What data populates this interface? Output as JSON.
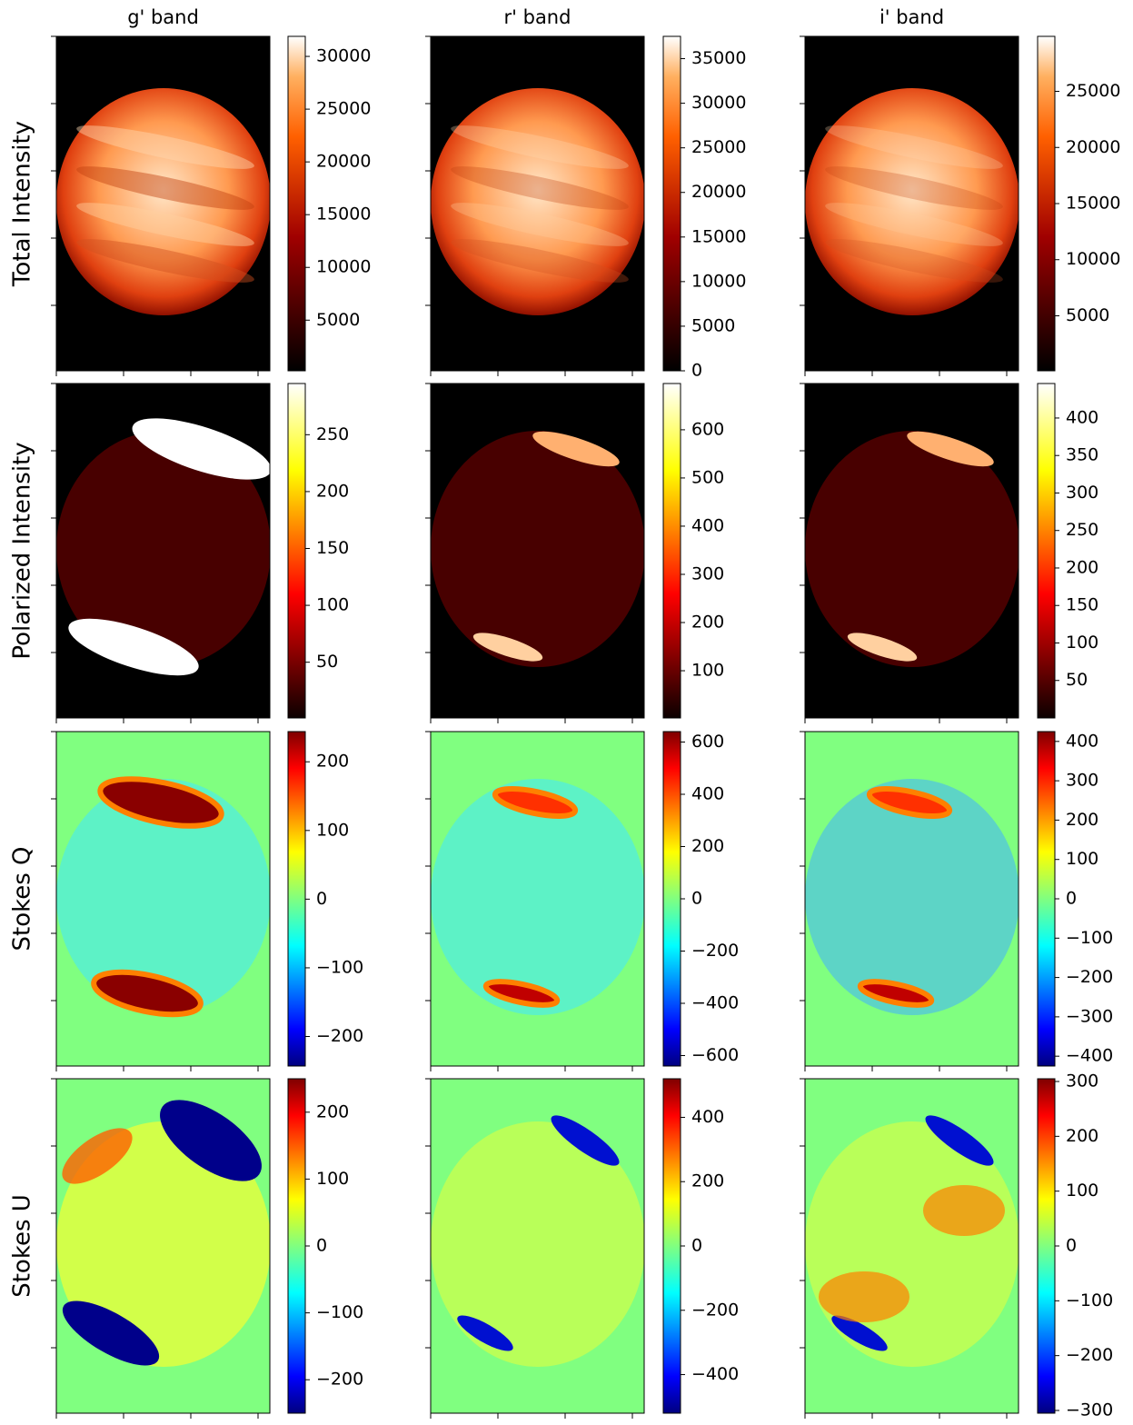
{
  "chart_data": [
    {
      "type": "image",
      "title": "g' band",
      "ylabel": "Total Intensity",
      "colormap": "hot",
      "clim": [
        200,
        31900
      ],
      "cticks": [
        5000,
        10000,
        15000,
        20000,
        25000,
        30000
      ]
    },
    {
      "type": "image",
      "title": "r' band",
      "colormap": "hot",
      "clim": [
        0,
        37500
      ],
      "cticks": [
        0,
        5000,
        10000,
        15000,
        20000,
        25000,
        30000,
        35000
      ]
    },
    {
      "type": "image",
      "title": "i' band",
      "colormap": "hot",
      "clim": [
        100,
        29900
      ],
      "cticks": [
        5000,
        10000,
        15000,
        20000,
        25000
      ]
    },
    {
      "type": "image",
      "ylabel": "Polarized Intensity",
      "colormap": "hot",
      "clim": [
        1,
        295
      ],
      "cticks": [
        50,
        100,
        150,
        200,
        250
      ]
    },
    {
      "type": "image",
      "colormap": "hot",
      "clim": [
        2,
        696
      ],
      "cticks": [
        100,
        200,
        300,
        400,
        500,
        600
      ]
    },
    {
      "type": "image",
      "colormap": "hot",
      "clim": [
        0,
        446
      ],
      "cticks": [
        50,
        100,
        150,
        200,
        250,
        300,
        350,
        400
      ]
    },
    {
      "type": "image",
      "ylabel": "Stokes Q",
      "colormap": "jet",
      "clim": [
        -243,
        244
      ],
      "cticks": [
        {
          "value": -200,
          "label": "−200"
        },
        {
          "value": -100,
          "label": "−100"
        },
        0,
        100,
        200
      ]
    },
    {
      "type": "image",
      "colormap": "jet",
      "clim": [
        -640,
        640
      ],
      "cticks": [
        {
          "value": -600,
          "label": "−600"
        },
        {
          "value": -400,
          "label": "−400"
        },
        {
          "value": -200,
          "label": "−200"
        },
        0,
        200,
        400,
        600
      ]
    },
    {
      "type": "image",
      "colormap": "jet",
      "clim": [
        -425,
        425
      ],
      "cticks": [
        {
          "value": -400,
          "label": "−400"
        },
        {
          "value": -300,
          "label": "−300"
        },
        {
          "value": -200,
          "label": "−200"
        },
        {
          "value": -100,
          "label": "−100"
        },
        0,
        100,
        200,
        300,
        400
      ]
    },
    {
      "type": "image",
      "ylabel": "Stokes U",
      "colormap": "jet",
      "clim": [
        -250,
        250
      ],
      "cticks": [
        {
          "value": -200,
          "label": "−200"
        },
        {
          "value": -100,
          "label": "−100"
        },
        0,
        100,
        200
      ]
    },
    {
      "type": "image",
      "colormap": "jet",
      "clim": [
        -520,
        520
      ],
      "cticks": [
        {
          "value": -400,
          "label": "−400"
        },
        {
          "value": -200,
          "label": "−200"
        },
        0,
        200,
        400
      ]
    },
    {
      "type": "image",
      "colormap": "jet",
      "clim": [
        -305,
        305
      ],
      "cticks": [
        {
          "value": -300,
          "label": "−300"
        },
        {
          "value": -200,
          "label": "−200"
        },
        {
          "value": -100,
          "label": "−100"
        },
        0,
        100,
        200,
        300
      ]
    }
  ]
}
